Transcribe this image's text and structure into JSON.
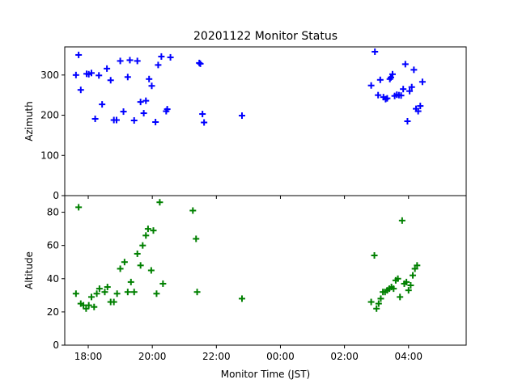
{
  "chart_data": {
    "type": "scatter",
    "title": "20201122 Monitor Status",
    "xlabel": "Monitor Time (JST)",
    "x_ticks": [
      "18:00",
      "20:00",
      "22:00",
      "00:00",
      "02:00",
      "04:00"
    ],
    "xlim": [
      "2020-11-22 17:16",
      "2020-11-23 05:48"
    ],
    "marker": "+",
    "panels": [
      {
        "ylabel": "Azimuth",
        "ylim": [
          0,
          370
        ],
        "y_ticks": [
          "0",
          "100",
          "200",
          "300"
        ],
        "color": "#0000ff",
        "points": [
          [
            "2020-11-22 17:37",
            300
          ],
          [
            "2020-11-22 17:42",
            350
          ],
          [
            "2020-11-22 17:46",
            263
          ],
          [
            "2020-11-22 17:57",
            303
          ],
          [
            "2020-11-22 18:01",
            302
          ],
          [
            "2020-11-22 18:06",
            305
          ],
          [
            "2020-11-22 18:13",
            191
          ],
          [
            "2020-11-22 18:20",
            299
          ],
          [
            "2020-11-22 18:26",
            227
          ],
          [
            "2020-11-22 18:35",
            316
          ],
          [
            "2020-11-22 18:42",
            287
          ],
          [
            "2020-11-22 18:48",
            188
          ],
          [
            "2020-11-22 18:53",
            188
          ],
          [
            "2020-11-22 19:00",
            335
          ],
          [
            "2020-11-22 19:06",
            209
          ],
          [
            "2020-11-22 19:14",
            295
          ],
          [
            "2020-11-22 19:18",
            337
          ],
          [
            "2020-11-22 19:26",
            187
          ],
          [
            "2020-11-22 19:32",
            335
          ],
          [
            "2020-11-22 19:38",
            233
          ],
          [
            "2020-11-22 19:44",
            205
          ],
          [
            "2020-11-22 19:48",
            236
          ],
          [
            "2020-11-22 19:54",
            290
          ],
          [
            "2020-11-22 19:59",
            273
          ],
          [
            "2020-11-22 20:06",
            183
          ],
          [
            "2020-11-22 20:11",
            325
          ],
          [
            "2020-11-22 20:17",
            346
          ],
          [
            "2020-11-22 20:26",
            210
          ],
          [
            "2020-11-22 20:28",
            215
          ],
          [
            "2020-11-22 20:34",
            344
          ],
          [
            "2020-11-22 21:28",
            330
          ],
          [
            "2020-11-22 21:30",
            328
          ],
          [
            "2020-11-22 21:34",
            203
          ],
          [
            "2020-11-22 21:37",
            182
          ],
          [
            "2020-11-22 22:48",
            199
          ],
          [
            "2020-11-23 02:50",
            274
          ],
          [
            "2020-11-23 02:57",
            358
          ],
          [
            "2020-11-23 03:03",
            250
          ],
          [
            "2020-11-23 03:07",
            288
          ],
          [
            "2020-11-23 03:13",
            245
          ],
          [
            "2020-11-23 03:17",
            240
          ],
          [
            "2020-11-23 03:20",
            242
          ],
          [
            "2020-11-23 03:25",
            290
          ],
          [
            "2020-11-23 03:27",
            294
          ],
          [
            "2020-11-23 03:30",
            302
          ],
          [
            "2020-11-23 03:34",
            248
          ],
          [
            "2020-11-23 03:38",
            251
          ],
          [
            "2020-11-23 03:42",
            250
          ],
          [
            "2020-11-23 03:46",
            249
          ],
          [
            "2020-11-23 03:50",
            265
          ],
          [
            "2020-11-23 03:54",
            327
          ],
          [
            "2020-11-23 03:58",
            185
          ],
          [
            "2020-11-23 04:02",
            260
          ],
          [
            "2020-11-23 04:06",
            270
          ],
          [
            "2020-11-23 04:10",
            313
          ],
          [
            "2020-11-23 04:14",
            216
          ],
          [
            "2020-11-23 04:18",
            210
          ],
          [
            "2020-11-23 04:22",
            223
          ],
          [
            "2020-11-23 04:26",
            283
          ]
        ]
      },
      {
        "ylabel": "Altitude",
        "ylim": [
          0,
          90
        ],
        "y_ticks": [
          "0",
          "20",
          "40",
          "60",
          "80"
        ],
        "color": "#008000",
        "points": [
          [
            "2020-11-22 17:37",
            31
          ],
          [
            "2020-11-22 17:42",
            83
          ],
          [
            "2020-11-22 17:46",
            25
          ],
          [
            "2020-11-22 17:51",
            24
          ],
          [
            "2020-11-22 17:56",
            22
          ],
          [
            "2020-11-22 18:01",
            24
          ],
          [
            "2020-11-22 18:06",
            29
          ],
          [
            "2020-11-22 18:11",
            23
          ],
          [
            "2020-11-22 18:16",
            31
          ],
          [
            "2020-11-22 18:21",
            34
          ],
          [
            "2020-11-22 18:31",
            32
          ],
          [
            "2020-11-22 18:36",
            35
          ],
          [
            "2020-11-22 18:42",
            26
          ],
          [
            "2020-11-22 18:48",
            26
          ],
          [
            "2020-11-22 18:54",
            31
          ],
          [
            "2020-11-22 19:00",
            46
          ],
          [
            "2020-11-22 19:08",
            50
          ],
          [
            "2020-11-22 19:14",
            32
          ],
          [
            "2020-11-22 19:20",
            38
          ],
          [
            "2020-11-22 19:26",
            32
          ],
          [
            "2020-11-22 19:32",
            55
          ],
          [
            "2020-11-22 19:38",
            48
          ],
          [
            "2020-11-22 19:42",
            60
          ],
          [
            "2020-11-22 19:48",
            66
          ],
          [
            "2020-11-22 19:52",
            70
          ],
          [
            "2020-11-22 19:58",
            45
          ],
          [
            "2020-11-22 20:02",
            69
          ],
          [
            "2020-11-22 20:08",
            31
          ],
          [
            "2020-11-22 20:14",
            86
          ],
          [
            "2020-11-22 20:20",
            37
          ],
          [
            "2020-11-22 21:16",
            81
          ],
          [
            "2020-11-22 21:22",
            64
          ],
          [
            "2020-11-22 21:24",
            32
          ],
          [
            "2020-11-22 22:48",
            28
          ],
          [
            "2020-11-23 02:50",
            26
          ],
          [
            "2020-11-23 02:56",
            54
          ],
          [
            "2020-11-23 03:00",
            22
          ],
          [
            "2020-11-23 03:04",
            25
          ],
          [
            "2020-11-23 03:08",
            28
          ],
          [
            "2020-11-23 03:12",
            32
          ],
          [
            "2020-11-23 03:16",
            32
          ],
          [
            "2020-11-23 03:20",
            33
          ],
          [
            "2020-11-23 03:24",
            34
          ],
          [
            "2020-11-23 03:28",
            35
          ],
          [
            "2020-11-23 03:32",
            34
          ],
          [
            "2020-11-23 03:36",
            39
          ],
          [
            "2020-11-23 03:40",
            40
          ],
          [
            "2020-11-23 03:44",
            29
          ],
          [
            "2020-11-23 03:48",
            75
          ],
          [
            "2020-11-23 03:52",
            37
          ],
          [
            "2020-11-23 03:56",
            38
          ],
          [
            "2020-11-23 04:00",
            33
          ],
          [
            "2020-11-23 04:04",
            36
          ],
          [
            "2020-11-23 04:08",
            42
          ],
          [
            "2020-11-23 04:12",
            46
          ],
          [
            "2020-11-23 04:16",
            48
          ]
        ]
      }
    ]
  }
}
